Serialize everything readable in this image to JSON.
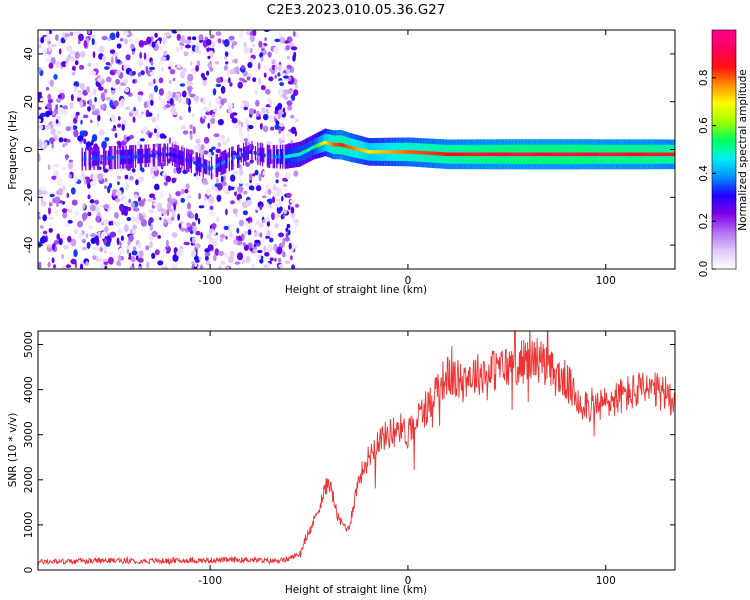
{
  "title": "C2E3.2023.010.05.36.G27",
  "chart_data": [
    {
      "type": "heatmap",
      "xlabel": "Height of straight line (km)",
      "ylabel": "Frequency (Hz)",
      "xlim": [
        -187,
        135
      ],
      "ylim": [
        -50,
        50
      ],
      "x_ticks": [
        -100,
        0,
        100
      ],
      "y_ticks": [
        -40,
        -20,
        0,
        20,
        40
      ],
      "colorbar": {
        "label": "Normalized spectral amplitude",
        "range": [
          0,
          1
        ],
        "ticks": [
          "0.0",
          "0.2",
          "0.4",
          "0.6",
          "0.8"
        ],
        "colormap": [
          "#ffffff",
          "#e0c8f8",
          "#b070f0",
          "#8000e8",
          "#2000ff",
          "#0090ff",
          "#00f0f0",
          "#00ff60",
          "#a0ff00",
          "#ffff00",
          "#ff9000",
          "#ff1010",
          "#ff0060",
          "#ff0090"
        ]
      },
      "noise_region_x": [
        -187,
        -62
      ],
      "signal_track": {
        "x": [
          -165,
          -140,
          -120,
          -100,
          -90,
          -80,
          -70,
          -62,
          -55,
          -48,
          -42,
          -38,
          -34,
          -30,
          -25,
          -20,
          -10,
          0,
          20,
          40,
          60,
          80,
          100,
          120,
          135
        ],
        "freq_hz": [
          -4,
          -3,
          -2,
          -8,
          -4,
          -1,
          -3,
          -3,
          -2,
          1,
          3,
          2,
          2,
          1,
          0,
          -1,
          -1,
          -1,
          -2,
          -2,
          -2,
          -2,
          -2,
          -2,
          -2
        ],
        "amplitude": [
          0.35,
          0.35,
          0.3,
          0.35,
          0.4,
          0.3,
          0.35,
          0.45,
          0.5,
          0.5,
          0.7,
          0.8,
          0.85,
          0.8,
          0.75,
          0.7,
          0.75,
          0.8,
          0.85,
          0.88,
          0.9,
          0.9,
          0.88,
          0.88,
          0.85
        ]
      }
    },
    {
      "type": "line",
      "xlabel": "Height of straight line (km)",
      "ylabel": "SNR (10 * v/v)",
      "xlim": [
        -187,
        135
      ],
      "ylim": [
        0,
        5300
      ],
      "x_ticks": [
        -100,
        0,
        100
      ],
      "y_ticks": [
        0,
        1000,
        2000,
        3000,
        4000,
        5000
      ],
      "series": [
        {
          "color": "#ee3333",
          "x": [
            -187,
            -170,
            -150,
            -130,
            -110,
            -90,
            -80,
            -70,
            -62,
            -55,
            -50,
            -45,
            -40,
            -35,
            -30,
            -25,
            -20,
            -15,
            -10,
            -5,
            0,
            5,
            10,
            15,
            20,
            25,
            30,
            40,
            50,
            60,
            65,
            70,
            75,
            80,
            85,
            90,
            95,
            100,
            110,
            120,
            130,
            135
          ],
          "values": [
            180,
            190,
            210,
            200,
            210,
            220,
            230,
            200,
            220,
            350,
            800,
            1400,
            2000,
            1100,
            900,
            2000,
            2500,
            2900,
            3000,
            3200,
            3000,
            3400,
            3600,
            4100,
            4300,
            4200,
            4300,
            4400,
            4500,
            4650,
            4700,
            4500,
            4300,
            4200,
            3800,
            3700,
            3600,
            3700,
            3900,
            4000,
            3900,
            3800
          ]
        }
      ]
    }
  ]
}
